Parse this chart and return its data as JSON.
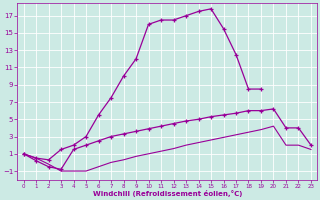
{
  "xlabel": "Windchill (Refroidissement éolien,°C)",
  "bg_color": "#cceae4",
  "grid_color": "#ffffff",
  "line_color": "#990099",
  "x_ticks": [
    0,
    1,
    2,
    3,
    4,
    5,
    6,
    7,
    8,
    9,
    10,
    11,
    12,
    13,
    14,
    15,
    16,
    17,
    18,
    19,
    20,
    21,
    22,
    23
  ],
  "y_ticks": [
    -1,
    1,
    3,
    5,
    7,
    9,
    11,
    13,
    15,
    17
  ],
  "xlim": [
    -0.5,
    23.5
  ],
  "ylim": [
    -2.0,
    18.5
  ],
  "series1_x": [
    0,
    1,
    2,
    3,
    4,
    5,
    6,
    7,
    8,
    9,
    10,
    11,
    12,
    13,
    14,
    15,
    16,
    17,
    18,
    19,
    20,
    21,
    22,
    23
  ],
  "series1_y": [
    1.0,
    0.5,
    0.3,
    1.5,
    2.0,
    3.0,
    5.5,
    7.5,
    10.0,
    12.0,
    16.0,
    16.5,
    16.5,
    17.0,
    17.5,
    17.8,
    15.5,
    12.5,
    8.5,
    8.5,
    null,
    null,
    null,
    null
  ],
  "series2_x": [
    0,
    1,
    2,
    3,
    4,
    5,
    6,
    7,
    8,
    9,
    10,
    11,
    12,
    13,
    14,
    15,
    16,
    17,
    18,
    19,
    20,
    21,
    22,
    23
  ],
  "series2_y": [
    1.0,
    0.2,
    -0.5,
    -0.8,
    1.5,
    2.0,
    2.5,
    3.0,
    3.3,
    3.6,
    3.9,
    4.2,
    4.5,
    4.8,
    5.0,
    5.3,
    5.5,
    5.7,
    6.0,
    6.0,
    6.2,
    4.0,
    4.0,
    2.0
  ],
  "series3_x": [
    0,
    1,
    2,
    3,
    4,
    5,
    6,
    7,
    8,
    9,
    10,
    11,
    12,
    13,
    14,
    15,
    16,
    17,
    18,
    19,
    20,
    21,
    22,
    23
  ],
  "series3_y": [
    1.0,
    0.5,
    -0.2,
    -1.0,
    -1.0,
    -1.0,
    -0.5,
    0.0,
    0.3,
    0.7,
    1.0,
    1.3,
    1.6,
    2.0,
    2.3,
    2.6,
    2.9,
    3.2,
    3.5,
    3.8,
    4.2,
    2.0,
    2.0,
    1.5
  ]
}
